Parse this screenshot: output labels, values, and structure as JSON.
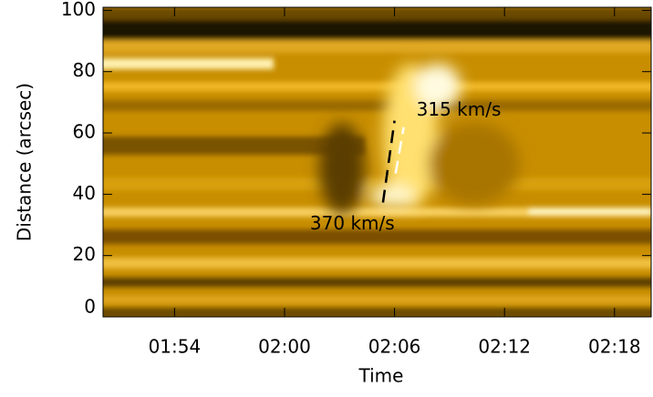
{
  "chart_data": {
    "type": "image",
    "x_label": "Time",
    "y_label": "Distance (arcsec)",
    "xlim": [
      110.1,
      140
    ],
    "xticks": [
      {
        "value": 114,
        "label": "01:54"
      },
      {
        "value": 120,
        "label": "02:00"
      },
      {
        "value": 126,
        "label": "02:06"
      },
      {
        "value": 132,
        "label": "02:12"
      },
      {
        "value": 138,
        "label": "02:18"
      }
    ],
    "ylim": [
      0,
      101
    ],
    "yticks": [
      0,
      20,
      40,
      60,
      80,
      100
    ],
    "fit_lines": [
      {
        "name": "370 km/s",
        "color": "#000000",
        "x": [
          125.37,
          126.0
        ],
        "y": [
          37.3,
          64
        ]
      },
      {
        "name": "315 km/s",
        "color": "#ffffff",
        "x": [
          126.06,
          126.5
        ],
        "y": [
          46.8,
          61.9
        ]
      }
    ]
  }
}
